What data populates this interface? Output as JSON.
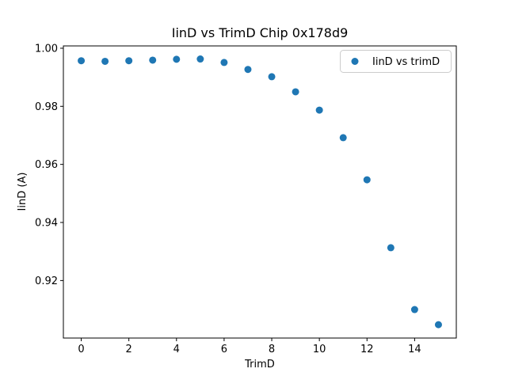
{
  "figure": {
    "background": "#ffffff",
    "accent_color": "#1f77b4"
  },
  "chart_data": {
    "type": "scatter",
    "title": "IinD vs TrimD Chip 0x178d9",
    "xlabel": "TrimD",
    "ylabel": "IinD (A)",
    "x": [
      0,
      1,
      2,
      3,
      4,
      5,
      6,
      7,
      8,
      9,
      10,
      11,
      12,
      13,
      14,
      15
    ],
    "series": [
      {
        "name": "IinD vs trimD",
        "marker": "circle",
        "color": "#1f77b4",
        "values": [
          0.9957,
          0.9955,
          0.9957,
          0.9959,
          0.9962,
          0.9963,
          0.9951,
          0.9927,
          0.9902,
          0.985,
          0.9787,
          0.9692,
          0.9547,
          0.9313,
          0.91,
          0.9048
        ]
      }
    ],
    "xlim": [
      -0.75,
      15.75
    ],
    "ylim": [
      0.9002,
      1.0008
    ],
    "xticks": [
      0,
      2,
      4,
      6,
      8,
      10,
      12,
      14
    ],
    "xtick_labels": [
      "0",
      "2",
      "4",
      "6",
      "8",
      "10",
      "12",
      "14"
    ],
    "yticks": [
      0.92,
      0.94,
      0.96,
      0.98,
      1.0
    ],
    "ytick_labels": [
      "0.92",
      "0.94",
      "0.96",
      "0.98",
      "1.00"
    ],
    "grid": false,
    "legend": {
      "position": "upper right",
      "entries": [
        "IinD vs trimD"
      ]
    }
  }
}
